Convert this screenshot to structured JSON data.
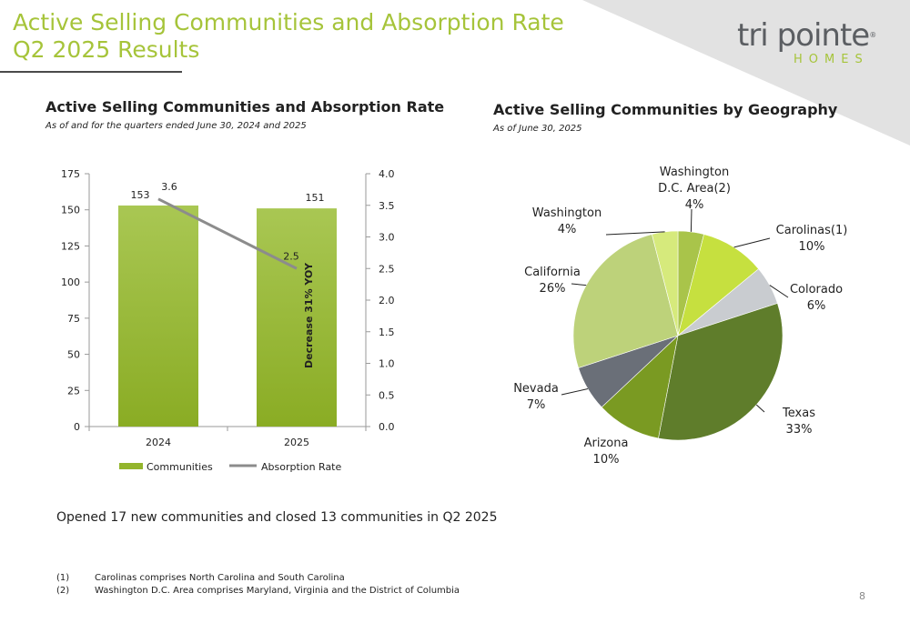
{
  "slide": {
    "title_line1": "Active Selling Communities and Absorption Rate",
    "title_line2": "Q2 2025 Results",
    "page_number": "8"
  },
  "logo": {
    "word": "tri pointe",
    "sub": "HOMES",
    "reg": "®"
  },
  "colors": {
    "accent": "#a6c43a",
    "bar": "#93b52c",
    "line": "#8c8c8c",
    "corner": "#e2e2e2"
  },
  "summary": "Opened 17 new communities and closed 13 communities in Q2 2025",
  "footnotes": [
    {
      "mark": "(1)",
      "text": "Carolinas comprises North Carolina and South Carolina"
    },
    {
      "mark": "(2)",
      "text": "Washington D.C. Area comprises Maryland, Virginia and the District of Columbia"
    }
  ],
  "chart_data": [
    {
      "type": "bar",
      "title": "Active Selling Communities and Absorption Rate",
      "subtitle": "As of and for the quarters ended June 30, 2024 and 2025",
      "categories": [
        "2024",
        "2025"
      ],
      "series": [
        {
          "name": "Communities",
          "kind": "bar",
          "axis": "left",
          "values": [
            153,
            151
          ],
          "labels": [
            "153",
            "151"
          ]
        },
        {
          "name": "Absorption Rate",
          "kind": "line",
          "axis": "right",
          "values": [
            3.6,
            2.5
          ],
          "labels": [
            "3.6",
            "2.5"
          ]
        }
      ],
      "ylim_left": [
        0,
        175
      ],
      "yticks_left": [
        "0",
        "25",
        "50",
        "75",
        "100",
        "125",
        "150",
        "175"
      ],
      "ylim_right": [
        0,
        4
      ],
      "yticks_right": [
        "0.0",
        "0.5",
        "1.0",
        "1.5",
        "2.0",
        "2.5",
        "3.0",
        "3.5",
        "4.0"
      ],
      "annotation": "Decrease 31% YOY",
      "legend": "bottom",
      "grid": false
    },
    {
      "type": "pie",
      "title": "Active Selling Communities by Geography",
      "subtitle": "As of June 30, 2025",
      "slices": [
        {
          "label": [
            "Washington",
            "D.C. Area(2)"
          ],
          "pct": "4%",
          "value": 4,
          "color": "#a9c44a"
        },
        {
          "label": [
            "Carolinas(1)"
          ],
          "pct": "10%",
          "value": 10,
          "color": "#c6e03f"
        },
        {
          "label": [
            "Colorado"
          ],
          "pct": "6%",
          "value": 6,
          "color": "#c9ccd0"
        },
        {
          "label": [
            "Texas"
          ],
          "pct": "33%",
          "value": 33,
          "color": "#5f7d2b"
        },
        {
          "label": [
            "Arizona"
          ],
          "pct": "10%",
          "value": 10,
          "color": "#7a9a22"
        },
        {
          "label": [
            "Nevada"
          ],
          "pct": "7%",
          "value": 7,
          "color": "#6a6f78"
        },
        {
          "label": [
            "California"
          ],
          "pct": "26%",
          "value": 26,
          "color": "#bdd27a"
        },
        {
          "label": [
            "Washington"
          ],
          "pct": "4%",
          "value": 4,
          "color": "#d6ea7c"
        }
      ]
    }
  ]
}
